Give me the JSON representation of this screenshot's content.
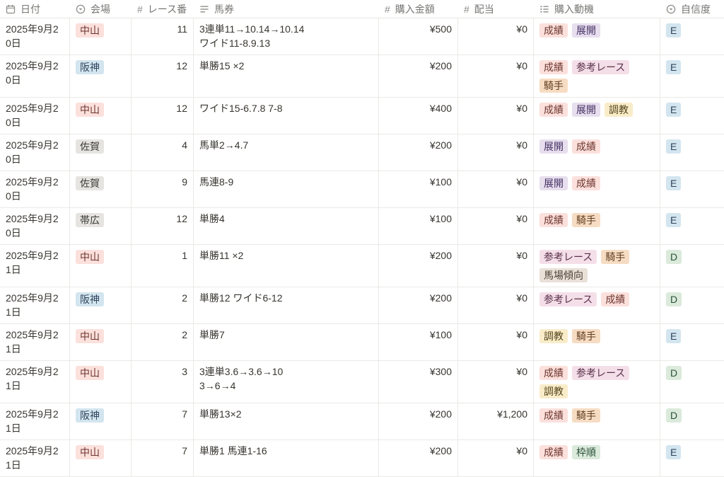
{
  "tag_colors": {
    "red": {
      "bg": "#fbe0dc",
      "text": "#6e352e"
    },
    "blue": {
      "bg": "#d3e5ef",
      "text": "#30455c"
    },
    "gray": {
      "bg": "#e5e4e1",
      "text": "#3d3b37"
    },
    "purple": {
      "bg": "#e7deee",
      "text": "#433062"
    },
    "pink": {
      "bg": "#f4dfe9",
      "text": "#5a3049"
    },
    "orange": {
      "bg": "#f6dcc3",
      "text": "#5f3a1c"
    },
    "yellow": {
      "bg": "#f8ecc9",
      "text": "#56451a"
    },
    "brown": {
      "bg": "#e9e0d8",
      "text": "#4c3f33"
    },
    "green": {
      "bg": "#dbeadb",
      "text": "#2a5139"
    }
  },
  "table": {
    "columns": [
      {
        "label": "日付",
        "icon": "calendar-icon"
      },
      {
        "label": "会場",
        "icon": "select-icon"
      },
      {
        "label": "レース番",
        "icon": "hash-icon"
      },
      {
        "label": "馬券",
        "icon": "text-icon"
      },
      {
        "label": "購入金額",
        "icon": "hash-icon"
      },
      {
        "label": "配当",
        "icon": "hash-icon"
      },
      {
        "label": "購入動機",
        "icon": "multiselect-icon"
      },
      {
        "label": "自信度",
        "icon": "select-icon"
      }
    ],
    "rows": [
      {
        "date": "2025年9月20日",
        "venue": {
          "label": "中山",
          "color": "red"
        },
        "race": "11",
        "bet": "3連単11→10.14→10.14\nワイド11-8.9.13",
        "amount": "¥500",
        "payout": "¥0",
        "motives": [
          {
            "label": "成績",
            "color": "red"
          },
          {
            "label": "展開",
            "color": "purple"
          }
        ],
        "confidence": {
          "label": "E",
          "color": "blue"
        }
      },
      {
        "date": "2025年9月20日",
        "venue": {
          "label": "阪神",
          "color": "blue"
        },
        "race": "12",
        "bet": "単勝15 ×2",
        "amount": "¥200",
        "payout": "¥0",
        "motives": [
          {
            "label": "成績",
            "color": "red"
          },
          {
            "label": "参考レース",
            "color": "pink"
          },
          {
            "label": "騎手",
            "color": "orange"
          }
        ],
        "confidence": {
          "label": "E",
          "color": "blue"
        }
      },
      {
        "date": "2025年9月20日",
        "venue": {
          "label": "中山",
          "color": "red"
        },
        "race": "12",
        "bet": "ワイド15-6.7.8 7-8",
        "amount": "¥400",
        "payout": "¥0",
        "motives": [
          {
            "label": "成績",
            "color": "red"
          },
          {
            "label": "展開",
            "color": "purple"
          },
          {
            "label": "調教",
            "color": "yellow"
          }
        ],
        "confidence": {
          "label": "E",
          "color": "blue"
        }
      },
      {
        "date": "2025年9月20日",
        "venue": {
          "label": "佐賀",
          "color": "gray"
        },
        "race": "4",
        "bet": "馬単2→4.7",
        "amount": "¥200",
        "payout": "¥0",
        "motives": [
          {
            "label": "展開",
            "color": "purple"
          },
          {
            "label": "成績",
            "color": "red"
          }
        ],
        "confidence": {
          "label": "E",
          "color": "blue"
        }
      },
      {
        "date": "2025年9月20日",
        "venue": {
          "label": "佐賀",
          "color": "gray"
        },
        "race": "9",
        "bet": "馬連8-9",
        "amount": "¥100",
        "payout": "¥0",
        "motives": [
          {
            "label": "展開",
            "color": "purple"
          },
          {
            "label": "成績",
            "color": "red"
          }
        ],
        "confidence": {
          "label": "E",
          "color": "blue"
        }
      },
      {
        "date": "2025年9月20日",
        "venue": {
          "label": "帯広",
          "color": "gray"
        },
        "race": "12",
        "bet": "単勝4",
        "amount": "¥100",
        "payout": "¥0",
        "motives": [
          {
            "label": "成績",
            "color": "red"
          },
          {
            "label": "騎手",
            "color": "orange"
          }
        ],
        "confidence": {
          "label": "E",
          "color": "blue"
        }
      },
      {
        "date": "2025年9月21日",
        "venue": {
          "label": "中山",
          "color": "red"
        },
        "race": "1",
        "bet": "単勝11 ×2",
        "amount": "¥200",
        "payout": "¥0",
        "motives": [
          {
            "label": "参考レース",
            "color": "pink"
          },
          {
            "label": "騎手",
            "color": "orange"
          },
          {
            "label": "馬場傾向",
            "color": "brown"
          }
        ],
        "confidence": {
          "label": "D",
          "color": "green"
        }
      },
      {
        "date": "2025年9月21日",
        "venue": {
          "label": "阪神",
          "color": "blue"
        },
        "race": "2",
        "bet": "単勝12 ワイド6-12",
        "amount": "¥200",
        "payout": "¥0",
        "motives": [
          {
            "label": "参考レース",
            "color": "pink"
          },
          {
            "label": "成績",
            "color": "red"
          }
        ],
        "confidence": {
          "label": "D",
          "color": "green"
        }
      },
      {
        "date": "2025年9月21日",
        "venue": {
          "label": "中山",
          "color": "red"
        },
        "race": "2",
        "bet": "単勝7",
        "amount": "¥100",
        "payout": "¥0",
        "motives": [
          {
            "label": "調教",
            "color": "yellow"
          },
          {
            "label": "騎手",
            "color": "orange"
          }
        ],
        "confidence": {
          "label": "E",
          "color": "blue"
        }
      },
      {
        "date": "2025年9月21日",
        "venue": {
          "label": "中山",
          "color": "red"
        },
        "race": "3",
        "bet": "3連単3.6→3.6→10\n3→6→4",
        "amount": "¥300",
        "payout": "¥0",
        "motives": [
          {
            "label": "成績",
            "color": "red"
          },
          {
            "label": "参考レース",
            "color": "pink"
          },
          {
            "label": "調教",
            "color": "yellow"
          }
        ],
        "confidence": {
          "label": "D",
          "color": "green"
        }
      },
      {
        "date": "2025年9月21日",
        "venue": {
          "label": "阪神",
          "color": "blue"
        },
        "race": "7",
        "bet": "単勝13×2",
        "amount": "¥200",
        "payout": "¥1,200",
        "motives": [
          {
            "label": "成績",
            "color": "red"
          },
          {
            "label": "騎手",
            "color": "orange"
          }
        ],
        "confidence": {
          "label": "D",
          "color": "green"
        }
      },
      {
        "date": "2025年9月21日",
        "venue": {
          "label": "中山",
          "color": "red"
        },
        "race": "7",
        "bet": "単勝1 馬連1-16",
        "amount": "¥200",
        "payout": "¥0",
        "motives": [
          {
            "label": "成績",
            "color": "red"
          },
          {
            "label": "枠順",
            "color": "green"
          }
        ],
        "confidence": {
          "label": "E",
          "color": "blue"
        }
      }
    ]
  }
}
